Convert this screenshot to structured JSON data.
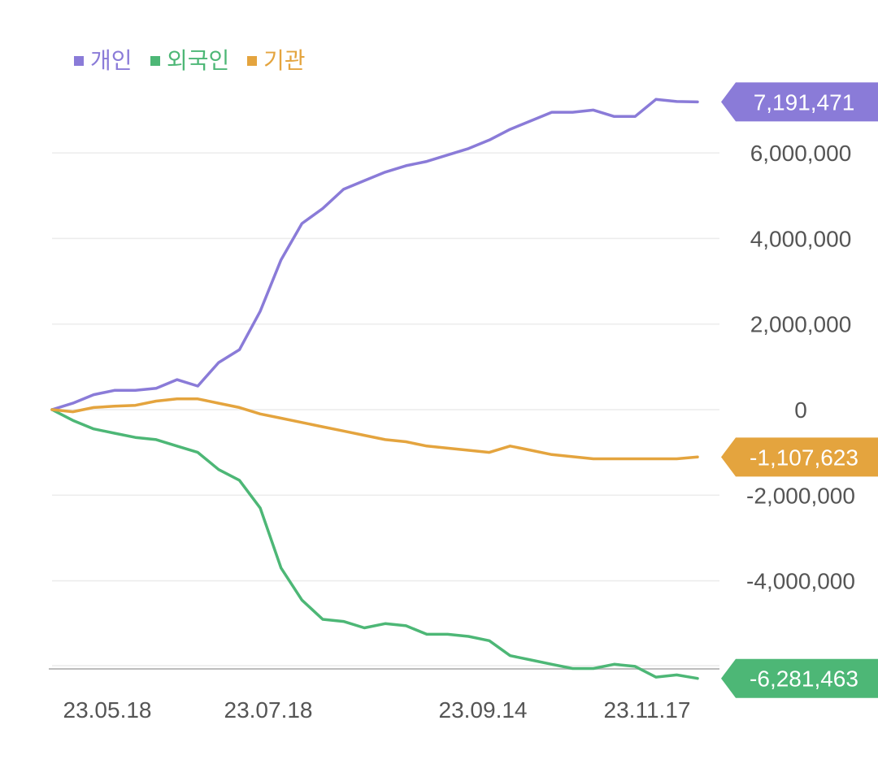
{
  "chart_data": {
    "type": "line",
    "title": "",
    "xlabel": "",
    "ylabel": "",
    "ylim": [
      -6500000,
      8000000
    ],
    "grid": true,
    "legend_position": "top-left",
    "x_ticks": [
      "23.05.18",
      "23.07.18",
      "23.09.14",
      "23.11.17"
    ],
    "y_ticks": [
      {
        "value": 6000000,
        "label": "6,000,000"
      },
      {
        "value": 4000000,
        "label": "4,000,000"
      },
      {
        "value": 2000000,
        "label": "2,000,000"
      },
      {
        "value": 0,
        "label": "0"
      },
      {
        "value": -2000000,
        "label": "-2,000,000"
      },
      {
        "value": -4000000,
        "label": "-4,000,000"
      }
    ],
    "x": [
      "23.05.18",
      "23.05.25",
      "23.06.01",
      "23.06.08",
      "23.06.15",
      "23.06.22",
      "23.06.29",
      "23.07.06",
      "23.07.13",
      "23.07.18",
      "23.07.25",
      "23.07.27",
      "23.07.28",
      "23.07.31",
      "23.08.01",
      "23.08.03",
      "23.08.08",
      "23.08.14",
      "23.08.21",
      "23.08.28",
      "23.09.04",
      "23.09.14",
      "23.09.21",
      "23.10.05",
      "23.10.16",
      "23.10.23",
      "23.10.30",
      "23.11.06",
      "23.11.17",
      "23.11.24",
      "23.12.01",
      "23.12.08"
    ],
    "series": [
      {
        "name": "개인",
        "color": "#8a7bd8",
        "last_label": "7,191,471",
        "values": [
          0,
          150000,
          350000,
          450000,
          450000,
          500000,
          700000,
          550000,
          1100000,
          1400000,
          2300000,
          3500000,
          4350000,
          4700000,
          5150000,
          5350000,
          5550000,
          5700000,
          5800000,
          5950000,
          6100000,
          6300000,
          6550000,
          6750000,
          6950000,
          6950000,
          7000000,
          6850000,
          6850000,
          7250000,
          7200000,
          7191471
        ]
      },
      {
        "name": "외국인",
        "color": "#4db776",
        "last_label": "-6,281,463",
        "values": [
          0,
          -250000,
          -450000,
          -550000,
          -650000,
          -700000,
          -850000,
          -1000000,
          -1400000,
          -1650000,
          -2300000,
          -3700000,
          -4450000,
          -4900000,
          -4950000,
          -5100000,
          -5000000,
          -5050000,
          -5250000,
          -5250000,
          -5300000,
          -5400000,
          -5750000,
          -5850000,
          -5950000,
          -6050000,
          -6050000,
          -5950000,
          -6000000,
          -6250000,
          -6200000,
          -6281463
        ]
      },
      {
        "name": "기관",
        "color": "#e4a43e",
        "last_label": "-1,107,623",
        "values": [
          0,
          -50000,
          50000,
          80000,
          100000,
          200000,
          250000,
          250000,
          150000,
          50000,
          -100000,
          -200000,
          -300000,
          -400000,
          -500000,
          -600000,
          -700000,
          -750000,
          -850000,
          -900000,
          -950000,
          -1000000,
          -850000,
          -950000,
          -1050000,
          -1100000,
          -1150000,
          -1150000,
          -1150000,
          -1150000,
          -1150000,
          -1107623
        ]
      }
    ]
  }
}
